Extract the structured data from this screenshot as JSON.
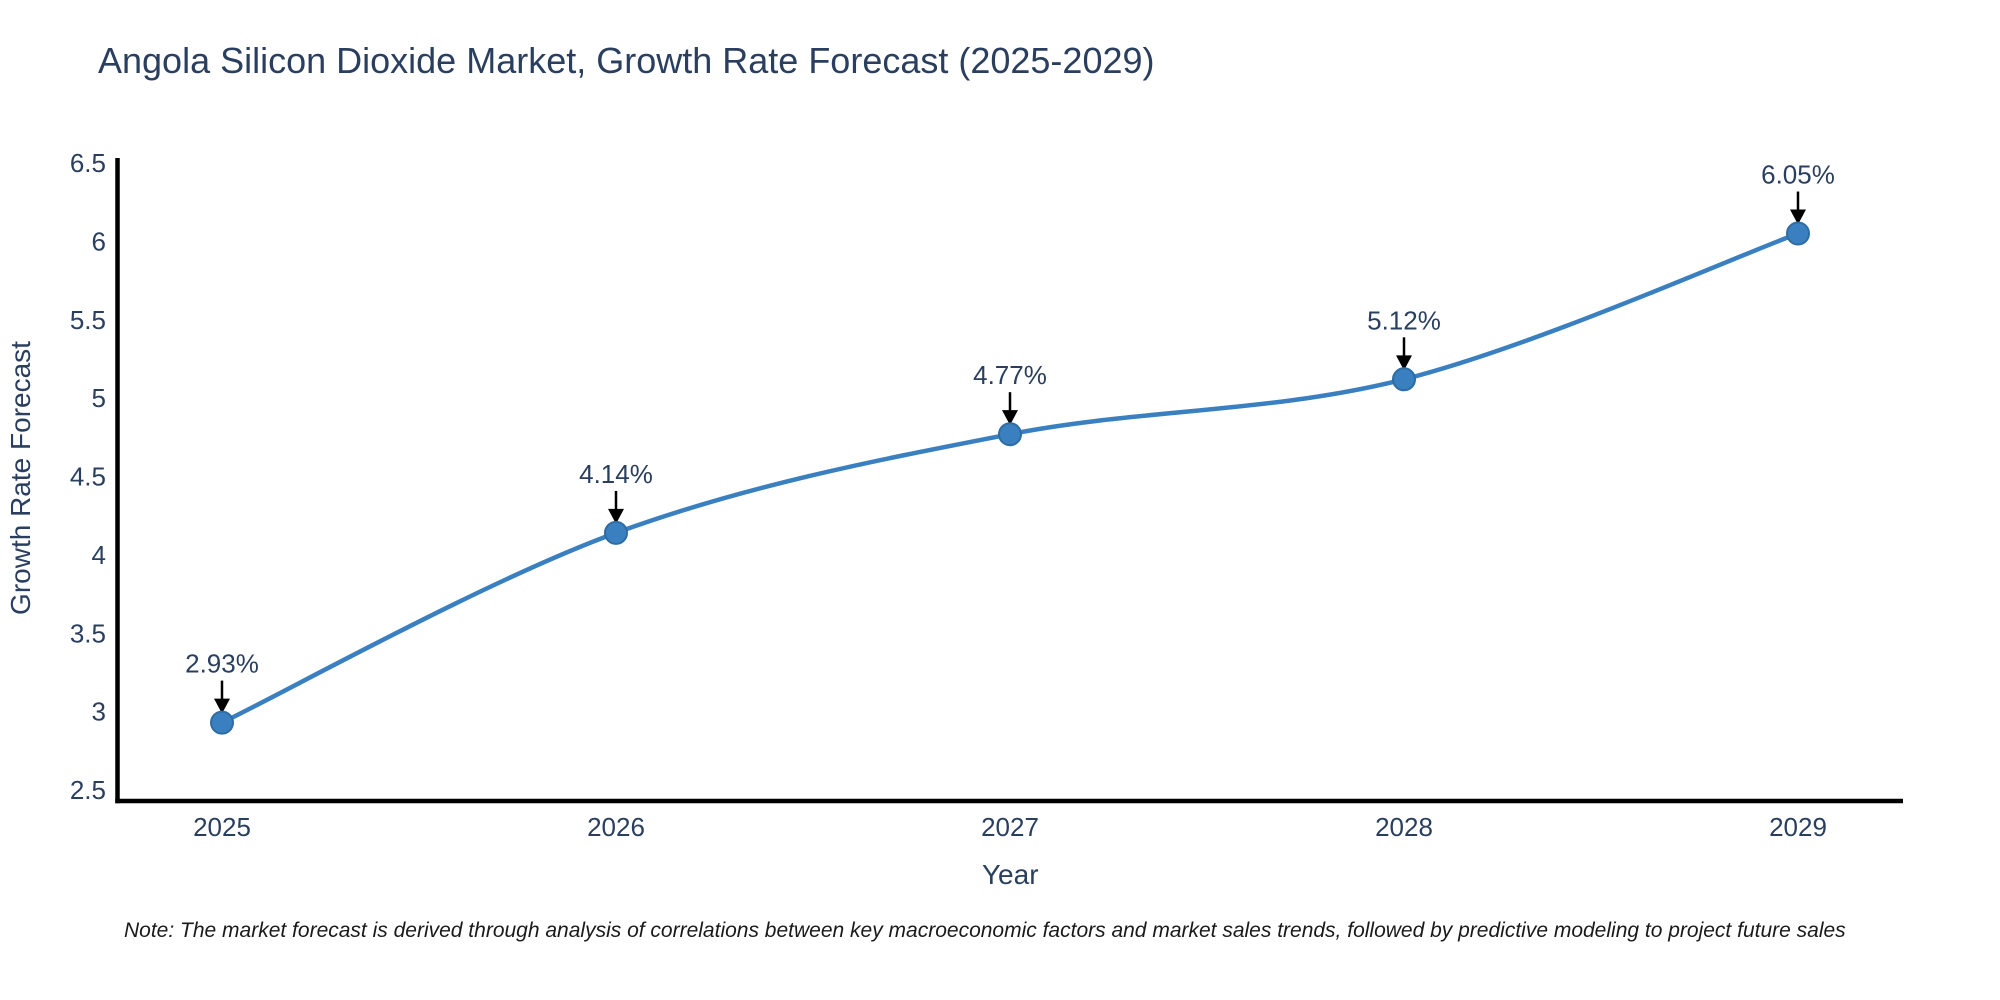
{
  "header": {
    "title": "Angola Silicon Dioxide Market, Growth Rate Forecast (2025-2029)"
  },
  "chart_data": {
    "type": "line",
    "title": "Angola Silicon Dioxide Market, Growth Rate Forecast (2025-2029)",
    "xlabel": "Year",
    "ylabel": "Growth Rate Forecast",
    "x": [
      2025,
      2026,
      2027,
      2028,
      2029
    ],
    "x_tick_labels": [
      "2025",
      "2026",
      "2027",
      "2028",
      "2029"
    ],
    "series": [
      {
        "name": "Growth Rate Forecast",
        "values": [
          2.93,
          4.14,
          4.77,
          5.12,
          6.05
        ]
      }
    ],
    "point_labels": [
      "2.93%",
      "4.14%",
      "4.77%",
      "5.12%",
      "6.05%"
    ],
    "y_ticks": [
      2.5,
      3,
      3.5,
      4,
      4.5,
      5,
      5.5,
      6,
      6.5
    ],
    "y_tick_labels": [
      "2.5",
      "3",
      "3.5",
      "4",
      "4.5",
      "5",
      "5.5",
      "6",
      "6.5"
    ],
    "ylim": [
      2.42,
      6.53
    ],
    "line_shape": "spline",
    "grid": false,
    "legend_position": "none",
    "colors": {
      "line": "#3a80c1",
      "marker": "#3a80c1",
      "marker_edge": "#2e6ca4",
      "arrow": "#000000",
      "axis_line": "#000000",
      "text": "#2a3f5f"
    }
  },
  "footer": {
    "note": "Note: The market forecast is derived through analysis of correlations between key macroeconomic factors and market sales trends, followed by predictive modeling to project future sales"
  }
}
